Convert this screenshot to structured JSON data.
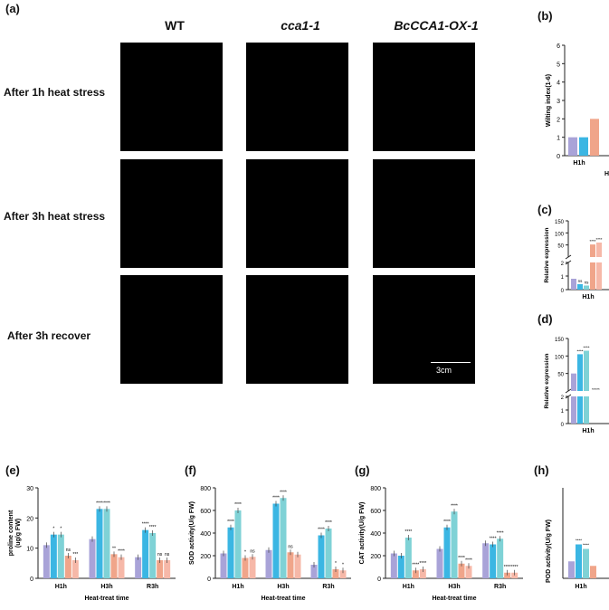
{
  "panel_a": {
    "label": "(a)",
    "columns": [
      "WT",
      "cca1-1",
      "BcCCA1-OX-1"
    ],
    "rows": [
      "After 1h heat stress",
      "After 3h heat stress",
      "After 3h recover"
    ],
    "scale_bar": "3cm"
  },
  "panel_labels": {
    "b": "(b)",
    "c": "(c)",
    "d": "(d)",
    "e": "(e)",
    "f": "(f)",
    "g": "(g)",
    "h": "(h)"
  },
  "colors": {
    "bar1": "#a9a3d8",
    "bar2": "#3bb6e3",
    "bar3": "#7fd2d6",
    "bar4": "#f0a58a",
    "bar5": "#f6b8a8",
    "photo_bg": "#000000"
  },
  "chart_data": [
    {
      "panel": "b",
      "type": "bar",
      "ylabel": "Wilting index(1-6)",
      "yticks": [
        "0",
        "1",
        "2",
        "3",
        "4",
        "5",
        "6"
      ],
      "ylim": [
        0,
        6
      ],
      "categories": [
        "H1h"
      ],
      "series_values": [
        [
          1,
          1,
          2
        ]
      ],
      "xlabel_partial": "He"
    },
    {
      "panel": "c",
      "type": "bar",
      "ylabel": "Relative expression",
      "yticks": [
        "0",
        "1",
        "2",
        "50",
        "100",
        "150"
      ],
      "categories": [
        "H1h"
      ],
      "series_values": [
        [
          0.8,
          0.4,
          0.3,
          52,
          60
        ]
      ],
      "significance": [
        "",
        "ns",
        "ns",
        "****",
        "****"
      ]
    },
    {
      "panel": "d",
      "type": "bar",
      "ylabel": "Relative expression",
      "yticks": [
        "0",
        "1",
        "2",
        "50",
        "100",
        "150"
      ],
      "categories": [
        "H1h"
      ],
      "series_values": [
        [
          50,
          105,
          115
        ]
      ],
      "significance": [
        "",
        "****",
        "****"
      ],
      "low_marks": [
        "*****"
      ]
    },
    {
      "panel": "e",
      "type": "bar",
      "ylabel": "proline content\n(ug/g FW)",
      "xlabel": "Heat-treat time",
      "yticks": [
        "0",
        "10",
        "20",
        "30"
      ],
      "ylim": [
        0,
        30
      ],
      "categories": [
        "H1h",
        "H3h",
        "R3h"
      ],
      "series_values": [
        [
          11,
          14.5,
          14.5,
          7.5,
          6
        ],
        [
          13,
          23,
          23,
          8,
          7
        ],
        [
          7,
          16,
          15,
          6,
          6
        ]
      ],
      "significance": [
        [
          "",
          "*",
          "*",
          "ns",
          "***"
        ],
        [
          "",
          "****",
          "****",
          "**",
          "****"
        ],
        [
          "",
          "****",
          "****",
          "ns",
          "ns"
        ]
      ]
    },
    {
      "panel": "f",
      "type": "bar",
      "ylabel": "SOD activity(U/g FW)",
      "xlabel": "Heat-treat time",
      "yticks": [
        "0",
        "200",
        "400",
        "600",
        "800"
      ],
      "ylim": [
        0,
        800
      ],
      "categories": [
        "H1h",
        "H3h",
        "R3h"
      ],
      "series_values": [
        [
          220,
          450,
          600,
          180,
          190
        ],
        [
          250,
          660,
          710,
          230,
          210
        ],
        [
          120,
          380,
          440,
          80,
          70
        ]
      ],
      "significance": [
        [
          "",
          "****",
          "****",
          "*",
          "ns"
        ],
        [
          "",
          "****",
          "****",
          "ns",
          ""
        ],
        [
          "",
          "****",
          "****",
          "*",
          "*"
        ]
      ]
    },
    {
      "panel": "g",
      "type": "bar",
      "ylabel": "CAT activity(U/g FW)",
      "xlabel": "Heat-treat time",
      "yticks": [
        "0",
        "200",
        "400",
        "600",
        "800"
      ],
      "ylim": [
        0,
        800
      ],
      "categories": [
        "H1h",
        "H3h",
        "R3h"
      ],
      "series_values": [
        [
          220,
          200,
          360,
          70,
          80
        ],
        [
          260,
          450,
          590,
          130,
          110
        ],
        [
          310,
          300,
          350,
          50,
          50
        ]
      ],
      "significance": [
        [
          "",
          "",
          "****",
          "****",
          "****"
        ],
        [
          "",
          "****",
          "****",
          "****",
          "****"
        ],
        [
          "",
          "****",
          "****",
          "****",
          "****"
        ]
      ]
    },
    {
      "panel": "h",
      "type": "bar",
      "ylabel": "POD activity(U/g FW)",
      "categories": [
        "H1h"
      ],
      "series_values": [
        [
          150,
          300,
          260,
          110
        ]
      ],
      "significance": [
        "",
        "****",
        "****",
        ""
      ]
    }
  ]
}
